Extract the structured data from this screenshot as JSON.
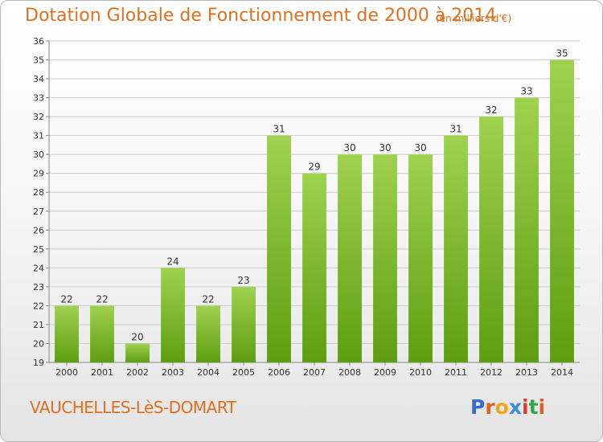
{
  "header": {
    "title": "Dotation Globale de Fonctionnement de 2000 à 2014",
    "unit": "(en milliers d'€)"
  },
  "footer": {
    "commune": "VAUCHELLES-LèS-DOMART",
    "logo_text": "Proxiti"
  },
  "colors": {
    "title": "#e0701f",
    "bar_top": "#9fd24f",
    "bar_bottom": "#5e9e10",
    "grid": "#cccccc",
    "logo": [
      "#2e6fd1",
      "#e85d1a",
      "#f0a418",
      "#3a8fd8",
      "#e03a2a",
      "#2ea84a",
      "#e85d1a"
    ]
  },
  "chart_data": {
    "type": "bar",
    "title": "Dotation Globale de Fonctionnement de 2000 à 2014",
    "subtitle": "(en milliers d'€)",
    "categories": [
      "2000",
      "2001",
      "2002",
      "2003",
      "2004",
      "2005",
      "2006",
      "2007",
      "2008",
      "2009",
      "2010",
      "2011",
      "2012",
      "2013",
      "2014"
    ],
    "values": [
      22,
      22,
      20,
      24,
      22,
      23,
      31,
      29,
      30,
      30,
      30,
      31,
      32,
      33,
      35
    ],
    "ylim": [
      19,
      36
    ],
    "yticks": [
      19,
      20,
      21,
      22,
      23,
      24,
      25,
      26,
      27,
      28,
      29,
      30,
      31,
      32,
      33,
      34,
      35,
      36
    ],
    "grid": true,
    "data_labels": true
  }
}
